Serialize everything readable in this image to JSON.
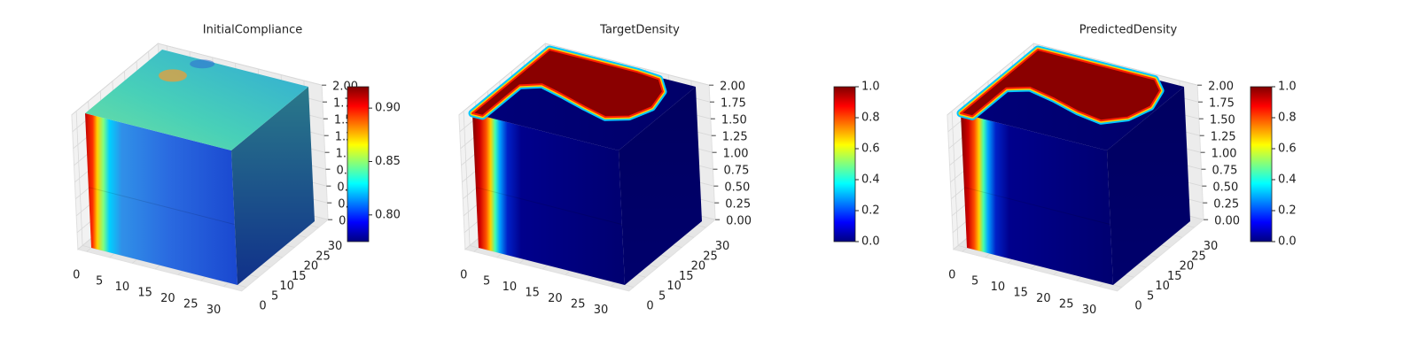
{
  "chart_data": [
    {
      "type": "voxel",
      "title": "InitialCompliance",
      "colormap": "jet",
      "grid": true,
      "xlim": [
        0,
        32
      ],
      "xticks": [
        0,
        5,
        10,
        15,
        20,
        25,
        30
      ],
      "ylim": [
        0,
        32
      ],
      "yticks": [
        0,
        5,
        10,
        15,
        20,
        25,
        30
      ],
      "zlim": [
        0,
        2
      ],
      "zticks": [
        {
          "value": 0,
          "label": "0.00"
        },
        0.25,
        {
          "value": 0.5,
          "label": "0.50"
        },
        0.75,
        {
          "value": 1,
          "label": "1.00"
        },
        1.25,
        {
          "value": 1.5,
          "label": "1.50"
        },
        1.75,
        {
          "value": 2,
          "label": "2.00"
        }
      ],
      "clim": [
        0.775,
        0.92
      ],
      "cticks": [
        {
          "value": 0.8,
          "label": "0.80"
        },
        {
          "value": 0.85,
          "label": "0.85"
        },
        {
          "value": 0.9,
          "label": "0.90"
        }
      ]
    },
    {
      "type": "voxel",
      "title": "TargetDensity",
      "colormap": "jet",
      "grid": true,
      "xlim": [
        0,
        32
      ],
      "xticks": [
        0,
        5,
        10,
        15,
        20,
        25,
        30
      ],
      "ylim": [
        0,
        32
      ],
      "yticks": [
        0,
        5,
        10,
        15,
        20,
        25,
        30
      ],
      "zlim": [
        0,
        2
      ],
      "zticks": [
        {
          "value": 0,
          "label": "0.00"
        },
        0.25,
        {
          "value": 0.5,
          "label": "0.50"
        },
        0.75,
        {
          "value": 1,
          "label": "1.00"
        },
        1.25,
        {
          "value": 1.5,
          "label": "1.50"
        },
        1.75,
        {
          "value": 2,
          "label": "2.00"
        }
      ],
      "clim": [
        0,
        1
      ],
      "cticks": [
        {
          "value": 0,
          "label": "0.0"
        },
        0.2,
        0.4,
        0.6,
        0.8,
        {
          "value": 1,
          "label": "1.0"
        }
      ]
    },
    {
      "type": "voxel",
      "title": "PredictedDensity",
      "colormap": "jet",
      "grid": true,
      "xlim": [
        0,
        32
      ],
      "xticks": [
        0,
        5,
        10,
        15,
        20,
        25,
        30
      ],
      "ylim": [
        0,
        32
      ],
      "yticks": [
        0,
        5,
        10,
        15,
        20,
        25,
        30
      ],
      "zlim": [
        0,
        2
      ],
      "zticks": [
        {
          "value": 0,
          "label": "0.00"
        },
        0.25,
        {
          "value": 0.5,
          "label": "0.50"
        },
        0.75,
        {
          "value": 1,
          "label": "1.00"
        },
        1.25,
        {
          "value": 1.5,
          "label": "1.50"
        },
        1.75,
        {
          "value": 2,
          "label": "2.00"
        }
      ],
      "clim": [
        0,
        1
      ],
      "cticks": [
        {
          "value": 0,
          "label": "0.0"
        },
        0.2,
        0.4,
        0.6,
        0.8,
        {
          "value": 1,
          "label": "1.0"
        }
      ]
    }
  ]
}
